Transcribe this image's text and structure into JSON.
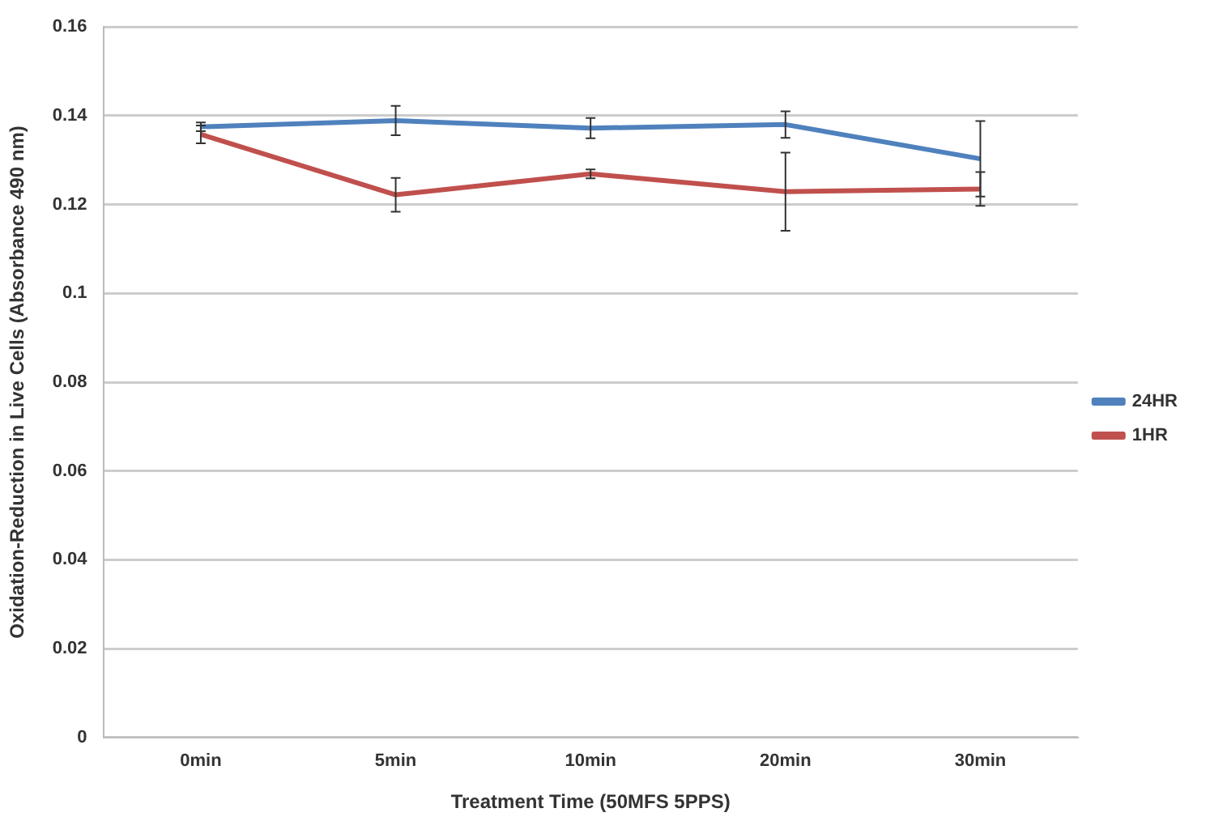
{
  "chart_data": {
    "type": "line",
    "xlabel": "Treatment Time (50MFS 5PPS)",
    "ylabel": "Oxidation-Reduction in Live Cells (Absorbance 490 nm)",
    "categories": [
      "0min",
      "5min",
      "10min",
      "20min",
      "30min"
    ],
    "series": [
      {
        "name": "24HR",
        "color": "#4f81bd",
        "values": [
          0.1375,
          0.1389,
          0.1372,
          0.138,
          0.1303
        ],
        "errors": [
          0.001,
          0.0033,
          0.0023,
          0.003,
          0.0085
        ]
      },
      {
        "name": "1HR",
        "color": "#c0504d",
        "values": [
          0.1358,
          0.1222,
          0.1269,
          0.1229,
          0.1235
        ],
        "errors": [
          0.002,
          0.0038,
          0.001,
          0.0088,
          0.0038
        ]
      }
    ],
    "ylim": [
      0,
      0.16
    ],
    "yticks": [
      0,
      0.02,
      0.04,
      0.06,
      0.08,
      {
        "value": 0.1,
        "label": "0.1"
      },
      0.12,
      0.14,
      0.16
    ],
    "grid": "y",
    "legend": "right",
    "marker": "none",
    "line_style": "solid"
  }
}
